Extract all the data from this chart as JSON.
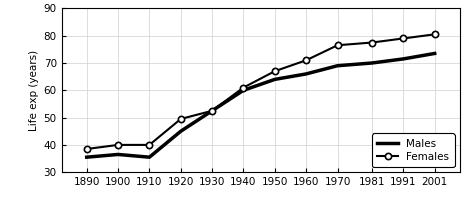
{
  "years": [
    1890,
    1900,
    1910,
    1920,
    1930,
    1940,
    1950,
    1960,
    1970,
    1981,
    1991,
    2001
  ],
  "males": [
    35.5,
    36.5,
    35.5,
    45.0,
    52.5,
    60.0,
    64.0,
    66.0,
    69.0,
    70.0,
    71.5,
    73.5
  ],
  "females": [
    38.5,
    40.0,
    40.0,
    49.5,
    52.5,
    61.0,
    67.0,
    71.0,
    76.5,
    77.5,
    79.0,
    80.5
  ],
  "ylabel": "Life exp (years)",
  "ylim": [
    30,
    90
  ],
  "yticks": [
    30,
    40,
    50,
    60,
    70,
    80,
    90
  ],
  "background_color": "#ffffff",
  "male_color": "#000000",
  "female_color": "#000000",
  "legend_males": "Males",
  "legend_females": "Females",
  "grid_color": "#d0d0d0"
}
